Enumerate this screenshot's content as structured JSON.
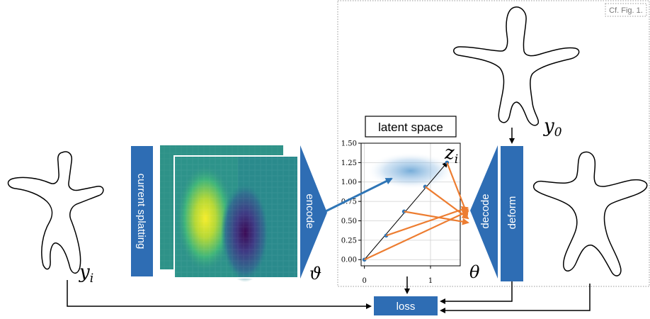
{
  "reference_note": "Cf. Fig. 1.",
  "labels": {
    "current_splatting": "current splatting",
    "encode": "encode",
    "decode": "decode",
    "deform": "deform",
    "loss": "loss",
    "latent_space": "latent space"
  },
  "symbols": {
    "y_i": {
      "base": "y",
      "sub": "i"
    },
    "y_0": {
      "base": "y",
      "sub": "0"
    },
    "z_i": {
      "base": "z",
      "sub": "i"
    },
    "vartheta": "ϑ",
    "theta": "θ"
  },
  "colors": {
    "block_blue": "#2e6db4",
    "orange_arrow": "#ed7d31",
    "blue_arrow": "#2e75b6",
    "blob_blue": "#6fa8d8"
  },
  "chart_data": {
    "type": "line",
    "title": "latent space",
    "xlabel": "",
    "ylabel": "",
    "xlim": [
      -0.05,
      1.45
    ],
    "ylim": [
      -0.08,
      1.5
    ],
    "x_ticks": [
      "0",
      "1"
    ],
    "y_ticks": [
      "0.00",
      "0.25",
      "0.50",
      "0.75",
      "1.00",
      "1.25",
      "1.50"
    ],
    "grid": true,
    "points": [
      {
        "x": 0.0,
        "y": 0.0
      },
      {
        "x": 0.33,
        "y": 0.31
      },
      {
        "x": 0.6,
        "y": 0.62
      },
      {
        "x": 0.92,
        "y": 0.94
      },
      {
        "x": 1.25,
        "y": 1.25
      }
    ],
    "target_label": "z_i"
  }
}
